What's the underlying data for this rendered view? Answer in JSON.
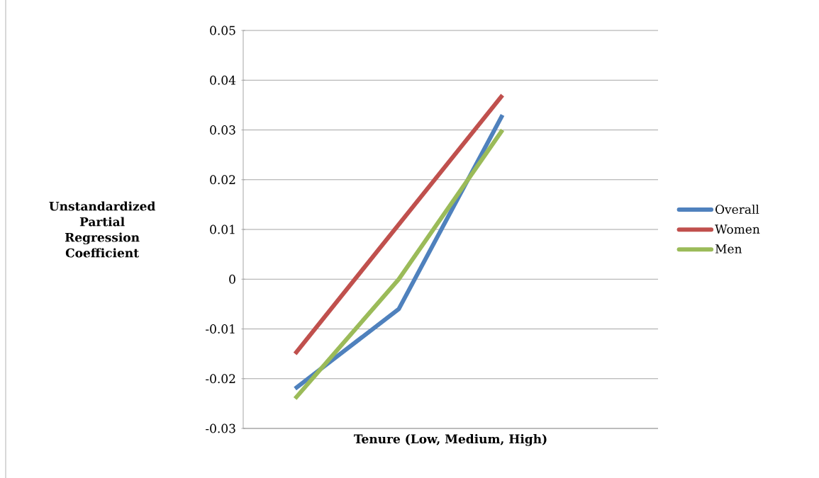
{
  "chart_data": {
    "type": "line",
    "xlabel": "Tenure (Low, Medium, High)",
    "ylabel": "Unstandardized Partial Regression Coefficient",
    "categories": [
      null,
      null,
      null,
      null
    ],
    "series": [
      {
        "name": "Overall",
        "color": "#4f81bd",
        "values": [
          -0.022,
          -0.006,
          0.033,
          null
        ]
      },
      {
        "name": "Women",
        "color": "#c0504d",
        "values": [
          -0.015,
          0.011,
          0.037,
          null
        ]
      },
      {
        "name": "Men",
        "color": "#9bbb59",
        "values": [
          -0.024,
          0.0,
          0.03,
          null
        ]
      }
    ],
    "ylim": [
      -0.03,
      0.05
    ],
    "yticks": [
      -0.03,
      -0.02,
      -0.01,
      0,
      0.01,
      0.02,
      0.03,
      0.04,
      0.05
    ],
    "grid": "y",
    "legend": "right"
  }
}
